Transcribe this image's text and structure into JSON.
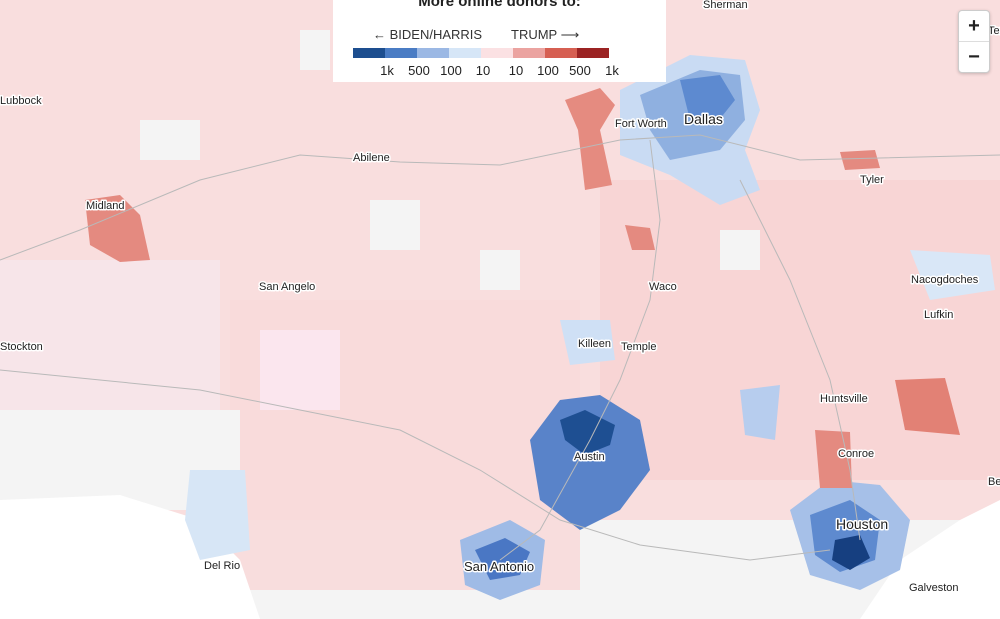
{
  "legend": {
    "title": "More online donors to:",
    "left_label": "BIDEN/HARRIS",
    "right_label": "TRUMP",
    "ticks": [
      "1k",
      "500",
      "100",
      "10",
      "10",
      "100",
      "500",
      "1k"
    ],
    "colors": [
      "#1d4e8f",
      "#4a7cc4",
      "#9bb8e4",
      "#d6e6f7",
      "#fbe1e3",
      "#eba3a0",
      "#d65f52",
      "#9b2323"
    ]
  },
  "zoom": {
    "in_label": "+",
    "out_label": "−"
  },
  "cities": {
    "dallas": "Dallas",
    "fort_worth": "Fort Worth",
    "abilene": "Abilene",
    "midland": "Midland",
    "tyler": "Tyler",
    "san_angelo": "San Angelo",
    "waco": "Waco",
    "nacogdoches": "Nacogdoches",
    "lufkin": "Lufkin",
    "stockton": "Stockton",
    "killeen": "Killeen",
    "temple": "Temple",
    "huntsville": "Huntsville",
    "austin": "Austin",
    "conroe": "Conroe",
    "houston": "Houston",
    "san_antonio": "San Antonio",
    "del_rio": "Del Rio",
    "galveston": "Galveston",
    "sherman": "Sherman",
    "lubbock": "Lubbock",
    "texarkana": "Tex",
    "beaumont": "Be"
  }
}
